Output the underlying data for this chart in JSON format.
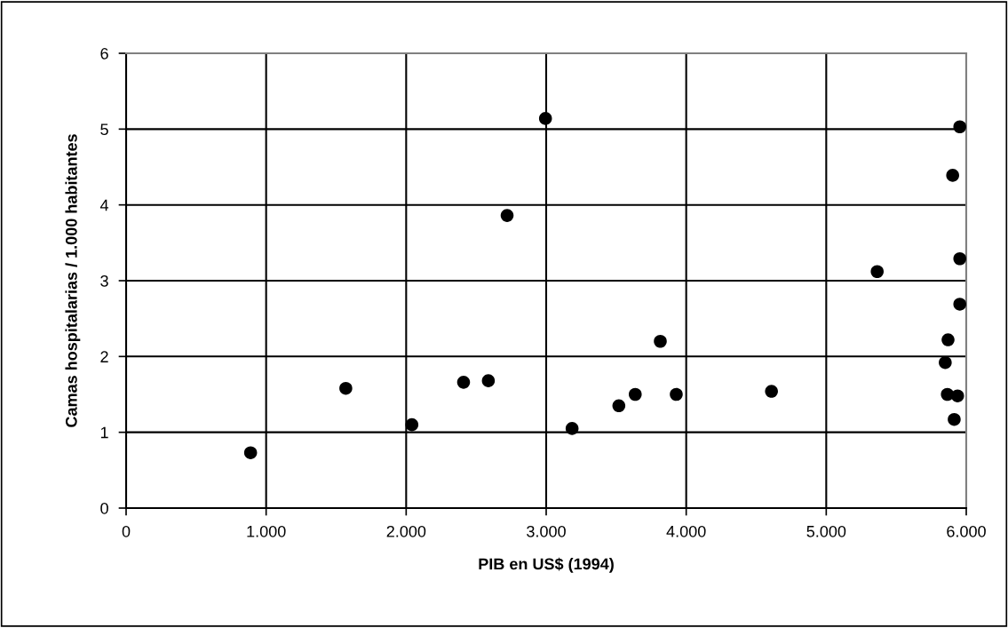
{
  "chart_data": {
    "type": "scatter",
    "xlabel": "PIB en US$ (1994)",
    "ylabel": "Camas hospitalarias / 1.000 habitantes",
    "x": [
      889,
      1569,
      2041,
      2410,
      2587,
      2721,
      2995,
      3185,
      3519,
      3636,
      3815,
      3929,
      4609,
      5364,
      5954,
      5903,
      5954,
      5954,
      5870,
      5850,
      5865,
      5938,
      5914
    ],
    "values": [
      0.73,
      1.58,
      1.1,
      1.66,
      1.68,
      3.86,
      5.14,
      1.05,
      1.35,
      1.5,
      2.2,
      1.5,
      1.54,
      3.12,
      5.03,
      4.39,
      3.29,
      2.69,
      2.22,
      1.92,
      1.5,
      1.48,
      1.17
    ],
    "color": "#000000",
    "marker": "circle",
    "grid": true,
    "xlim": [
      0,
      6000
    ],
    "xticks": [
      {
        "value": 0,
        "label": "0"
      },
      {
        "value": 1000,
        "label": "1.000"
      },
      {
        "value": 2000,
        "label": "2.000"
      },
      {
        "value": 3000,
        "label": "3.000"
      },
      {
        "value": 4000,
        "label": "4.000"
      },
      {
        "value": 5000,
        "label": "5.000"
      },
      {
        "value": 6000,
        "label": "6.000"
      }
    ],
    "ylim": [
      0,
      6
    ],
    "yticks": [
      0,
      1,
      2,
      3,
      4,
      5,
      6
    ]
  }
}
